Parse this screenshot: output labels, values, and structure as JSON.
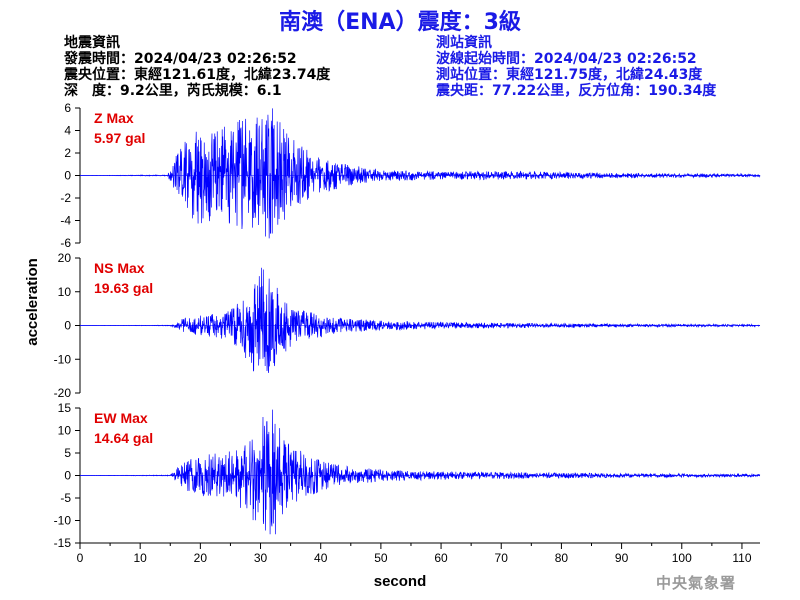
{
  "title": "南澳（ENA）震度：3級",
  "quake_info": {
    "heading": "地震資訊",
    "origin_time": "發震時間：2024/04/23 02:26:52",
    "epicenter": "震央位置：東經121.61度，北緯23.74度",
    "depth_magnitude": "深　度：9.2公里，芮氏規模：6.1"
  },
  "station_info": {
    "heading": "測站資訊",
    "wave_start": "波線起始時間：2024/04/23 02:26:52",
    "location": "測站位置：東經121.75度，北緯24.43度",
    "distance": "震央距：77.22公里，反方位角：190.34度"
  },
  "watermark": "中央氣象署",
  "colors": {
    "title": "#1a1ae6",
    "trace": "#0000ff",
    "max_label": "#e00000",
    "station_info": "#1a1ae6"
  },
  "chart_data": {
    "type": "line",
    "xlabel": "second",
    "ylabel": "acceleration",
    "xlim": [
      0,
      113
    ],
    "x_ticks": [
      0,
      10,
      20,
      30,
      40,
      50,
      60,
      70,
      80,
      90,
      100,
      110
    ],
    "panels": [
      {
        "component": "Z",
        "max_label": "Z Max",
        "max_value": "5.97 gal",
        "peak": 5.97,
        "ylim": [
          -6,
          6
        ],
        "y_ticks": [
          6,
          4,
          2,
          0,
          -2,
          -4,
          -6
        ],
        "envelope": [
          [
            0,
            0.0
          ],
          [
            14.5,
            0.05
          ],
          [
            16,
            1.8
          ],
          [
            18,
            3.5
          ],
          [
            20,
            4.5
          ],
          [
            22,
            4.0
          ],
          [
            25,
            4.6
          ],
          [
            28,
            5.3
          ],
          [
            30,
            5.4
          ],
          [
            32,
            5.97
          ],
          [
            34,
            4.0
          ],
          [
            36,
            3.0
          ],
          [
            38,
            2.2
          ],
          [
            40,
            1.6
          ],
          [
            45,
            0.9
          ],
          [
            50,
            0.55
          ],
          [
            60,
            0.35
          ],
          [
            70,
            0.4
          ],
          [
            80,
            0.3
          ],
          [
            90,
            0.22
          ],
          [
            100,
            0.18
          ],
          [
            113,
            0.12
          ]
        ]
      },
      {
        "component": "NS",
        "max_label": "NS Max",
        "max_value": "19.63 gal",
        "peak": 19.63,
        "ylim": [
          -20,
          20
        ],
        "y_ticks": [
          20,
          10,
          0,
          -10,
          -20
        ],
        "envelope": [
          [
            0,
            0.0
          ],
          [
            15,
            0.1
          ],
          [
            17,
            2.0
          ],
          [
            20,
            3.0
          ],
          [
            25,
            4.5
          ],
          [
            28,
            11.0
          ],
          [
            30,
            18.0
          ],
          [
            31,
            19.63
          ],
          [
            32,
            14.0
          ],
          [
            34,
            8.0
          ],
          [
            36,
            5.0
          ],
          [
            40,
            3.5
          ],
          [
            45,
            2.0
          ],
          [
            50,
            1.5
          ],
          [
            60,
            1.0
          ],
          [
            70,
            0.8
          ],
          [
            80,
            0.6
          ],
          [
            90,
            0.5
          ],
          [
            100,
            0.4
          ],
          [
            113,
            0.3
          ]
        ]
      },
      {
        "component": "EW",
        "max_label": "EW Max",
        "max_value": "14.64 gal",
        "peak": 14.64,
        "ylim": [
          -15,
          15
        ],
        "y_ticks": [
          15,
          10,
          5,
          0,
          -5,
          -10,
          -15
        ],
        "envelope": [
          [
            0,
            0.0
          ],
          [
            15,
            0.1
          ],
          [
            17,
            3.0
          ],
          [
            20,
            4.5
          ],
          [
            25,
            5.5
          ],
          [
            28,
            9.0
          ],
          [
            30,
            13.0
          ],
          [
            32,
            14.64
          ],
          [
            34,
            8.0
          ],
          [
            36,
            6.0
          ],
          [
            40,
            3.5
          ],
          [
            45,
            2.0
          ],
          [
            50,
            1.3
          ],
          [
            60,
            0.9
          ],
          [
            70,
            0.8
          ],
          [
            80,
            0.6
          ],
          [
            90,
            0.5
          ],
          [
            100,
            0.4
          ],
          [
            113,
            0.3
          ]
        ]
      }
    ]
  }
}
